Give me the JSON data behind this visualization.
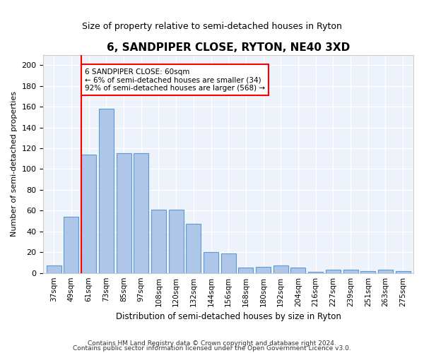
{
  "title": "6, SANDPIPER CLOSE, RYTON, NE40 3XD",
  "subtitle": "Size of property relative to semi-detached houses in Ryton",
  "xlabel": "Distribution of semi-detached houses by size in Ryton",
  "ylabel": "Number of semi-detached properties",
  "bin_labels": [
    "37sqm",
    "49sqm",
    "61sqm",
    "73sqm",
    "85sqm",
    "97sqm",
    "108sqm",
    "120sqm",
    "132sqm",
    "144sqm",
    "156sqm",
    "168sqm",
    "180sqm",
    "192sqm",
    "204sqm",
    "216sqm",
    "227sqm",
    "239sqm",
    "251sqm",
    "263sqm",
    "275sqm"
  ],
  "bar_values": [
    7,
    54,
    114,
    158,
    115,
    115,
    61,
    61,
    47,
    20,
    19,
    5,
    6,
    7,
    5,
    1,
    3,
    3,
    2,
    3,
    2
  ],
  "bar_color": "#aec6e8",
  "bar_edge_color": "#5b9bd5",
  "annotation_text_line1": "6 SANDPIPER CLOSE: 60sqm",
  "annotation_text_line2": "← 6% of semi-detached houses are smaller (34)",
  "annotation_text_line3": "92% of semi-detached houses are larger (568) →",
  "ylim": [
    0,
    210
  ],
  "yticks": [
    0,
    20,
    40,
    60,
    80,
    100,
    120,
    140,
    160,
    180,
    200
  ],
  "footer1": "Contains HM Land Registry data © Crown copyright and database right 2024.",
  "footer2": "Contains public sector information licensed under the Open Government Licence v3.0.",
  "background_color": "#edf2fb"
}
